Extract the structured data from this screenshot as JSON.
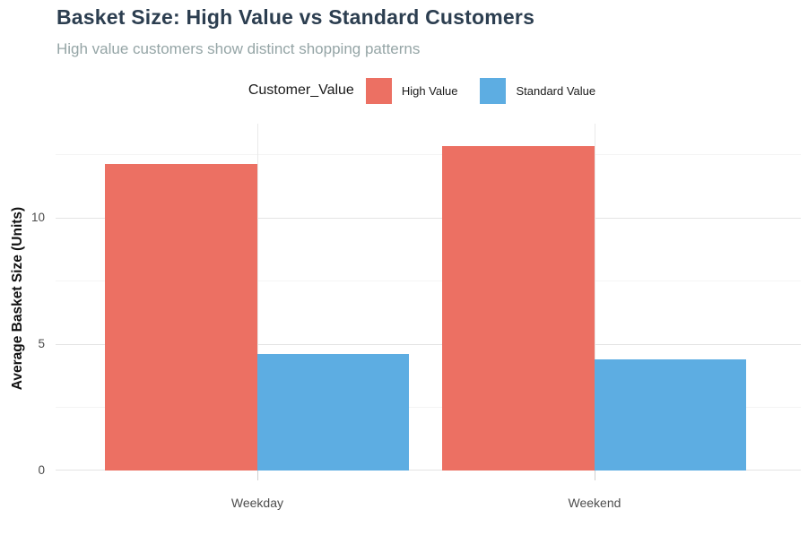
{
  "header": {
    "title": "Basket Size: High Value vs Standard Customers",
    "subtitle": "High value customers show distinct shopping patterns"
  },
  "chart_data": {
    "type": "bar",
    "title": "Basket Size: High Value vs Standard Customers",
    "subtitle": "High value customers show distinct shopping patterns",
    "categories": [
      "Weekday",
      "Weekend"
    ],
    "series": [
      {
        "name": "High Value",
        "color": "#EC7063",
        "values": [
          12.1,
          12.8
        ]
      },
      {
        "name": "Standard Value",
        "color": "#5DADE2",
        "values": [
          4.6,
          4.4
        ]
      }
    ],
    "legend_title": "Customer_Value",
    "legend_position": "top-center",
    "xlabel": "",
    "ylabel": "Average Basket Size (Units)",
    "ylim": [
      0,
      13.7
    ],
    "yticks_major": [
      0,
      5,
      10
    ],
    "yticks_minor": [
      2.5,
      7.5,
      12.5
    ],
    "grid": "horizontal major+minor, vertical major at category centers",
    "theme": {
      "title_color": "#2c3e50",
      "subtitle_color": "#95a5a6",
      "tick_label_color": "#4d4d4d",
      "grid_major_color": "#e3e3e3",
      "grid_minor_color": "#f4f4f4",
      "background": "#ffffff"
    }
  }
}
